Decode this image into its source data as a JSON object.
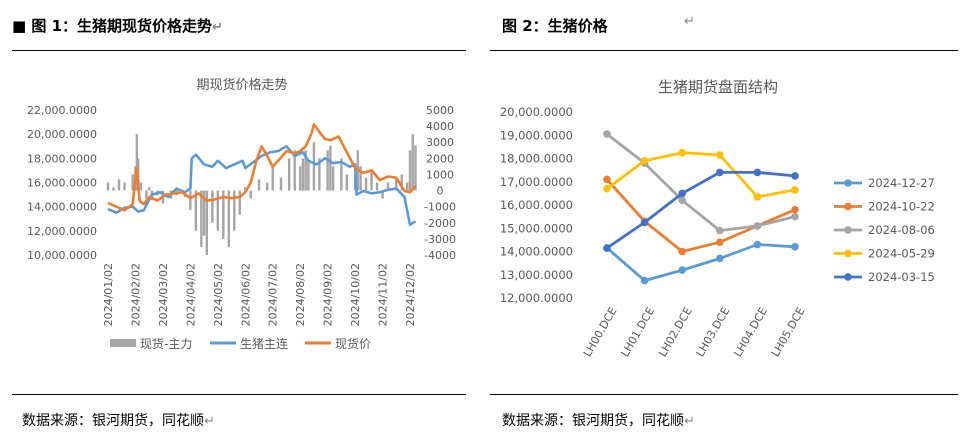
{
  "left": {
    "figure_title": "■ 图 1：生猪期现货价格走势",
    "source": "数据来源：银河期货，同花顺",
    "return_mark": "↵",
    "chart_data": {
      "type": "bar+line",
      "title": "期现货价格走势",
      "x_ticks": [
        "2024/01/02",
        "2024/02/02",
        "2024/03/02",
        "2024/04/02",
        "2024/05/02",
        "2024/06/02",
        "2024/07/02",
        "2024/08/02",
        "2024/09/02",
        "2024/10/02",
        "2024/11/02",
        "2024/12/02"
      ],
      "left_axis": {
        "ylim": [
          10000,
          22000
        ],
        "ticks": [
          "22,000.0000",
          "20,000.0000",
          "18,000.0000",
          "16,000.0000",
          "14,000.0000",
          "12,000.0000",
          "10,000.0000"
        ],
        "tick_values": [
          22000,
          20000,
          18000,
          16000,
          14000,
          12000,
          10000
        ]
      },
      "right_axis": {
        "ylim": [
          -4000,
          5000
        ],
        "ticks": [
          "5000",
          "4000",
          "3000",
          "2000",
          "1000",
          "0",
          "-1000",
          "-2000",
          "-3000",
          "-4000"
        ],
        "tick_values": [
          5000,
          4000,
          3000,
          2000,
          1000,
          0,
          -1000,
          -2000,
          -3000,
          -4000
        ]
      },
      "series": [
        {
          "name": "现货-主力",
          "kind": "bar",
          "axis": "right",
          "color": "#a5a5a5",
          "t": [
            0.0,
            0.2,
            0.4,
            0.6,
            0.9,
            1.0,
            1.05,
            1.1,
            1.2,
            1.4,
            1.5,
            1.6,
            1.8,
            2.0,
            2.3,
            2.5,
            2.8,
            3.0,
            3.2,
            3.4,
            3.5,
            3.6,
            3.8,
            4.0,
            4.2,
            4.4,
            4.6,
            4.8,
            5.0,
            5.2,
            5.5,
            5.8,
            6.0,
            6.3,
            6.6,
            6.8,
            7.0,
            7.1,
            7.2,
            7.3,
            7.5,
            7.7,
            8.0,
            8.1,
            8.2,
            8.5,
            8.7,
            9.0,
            9.1,
            9.2,
            9.4,
            9.6,
            9.8,
            10.0,
            10.2,
            10.5,
            10.7,
            10.9,
            11.0,
            11.1,
            11.2
          ],
          "values": [
            500,
            200,
            700,
            500,
            1000,
            1500,
            3500,
            2000,
            500,
            -500,
            200,
            -600,
            -300,
            -800,
            -500,
            -300,
            -400,
            -1200,
            -2500,
            -3500,
            -2800,
            -4000,
            -2000,
            -2500,
            -3000,
            -3500,
            -2500,
            -1500,
            200,
            -500,
            700,
            500,
            1500,
            800,
            2000,
            2500,
            1500,
            2000,
            2500,
            1800,
            3000,
            2000,
            2500,
            2800,
            1500,
            2000,
            1000,
            1000,
            2500,
            1500,
            800,
            1200,
            500,
            -500,
            500,
            800,
            1000,
            500,
            2500,
            3500,
            2800
          ]
        },
        {
          "name": "生猪主连",
          "kind": "line",
          "axis": "left",
          "color": "#5b9bd5",
          "t": [
            0.0,
            0.3,
            0.6,
            0.9,
            1.1,
            1.3,
            1.6,
            1.9,
            2.2,
            2.5,
            2.8,
            3.0,
            3.05,
            3.2,
            3.5,
            3.8,
            4.0,
            4.3,
            4.6,
            4.9,
            5.0,
            5.3,
            5.6,
            5.9,
            6.2,
            6.5,
            6.8,
            7.1,
            7.3,
            7.6,
            7.9,
            8.2,
            8.5,
            8.8,
            9.0,
            9.05,
            9.3,
            9.6,
            9.9,
            10.2,
            10.5,
            10.8,
            11.0,
            11.2
          ],
          "values": [
            13800,
            13500,
            13900,
            14000,
            13600,
            13700,
            15000,
            15200,
            14800,
            15500,
            15200,
            15500,
            18000,
            18300,
            17500,
            17300,
            17800,
            17200,
            17500,
            17800,
            17200,
            17700,
            18200,
            18500,
            18600,
            19000,
            18200,
            18500,
            17800,
            17500,
            18000,
            17600,
            17700,
            17300,
            17500,
            15000,
            15300,
            15100,
            15200,
            15400,
            15500,
            14800,
            12500,
            12800
          ]
        },
        {
          "name": "现货价",
          "kind": "line",
          "axis": "left",
          "color": "#ed7d31",
          "t": [
            0.0,
            0.3,
            0.6,
            0.9,
            1.0,
            1.05,
            1.15,
            1.3,
            1.5,
            1.8,
            2.1,
            2.4,
            2.7,
            3.0,
            3.3,
            3.6,
            3.9,
            4.2,
            4.5,
            4.8,
            5.0,
            5.2,
            5.4,
            5.6,
            5.8,
            6.0,
            6.2,
            6.5,
            6.8,
            7.0,
            7.2,
            7.4,
            7.5,
            7.7,
            7.9,
            8.1,
            8.4,
            8.7,
            9.0,
            9.3,
            9.6,
            9.9,
            10.2,
            10.5,
            10.8,
            11.0,
            11.2
          ],
          "values": [
            14300,
            14000,
            13700,
            14200,
            16500,
            17200,
            14500,
            14200,
            14800,
            14500,
            15000,
            15100,
            15200,
            14700,
            15100,
            14500,
            14600,
            14800,
            14700,
            14800,
            15200,
            16000,
            17800,
            19000,
            18200,
            17300,
            17800,
            18600,
            18400,
            18600,
            19000,
            20000,
            20800,
            20200,
            19600,
            19500,
            19800,
            18500,
            17200,
            16800,
            17000,
            16200,
            16500,
            16400,
            15300,
            15200,
            15700
          ]
        }
      ],
      "legend": [
        "现货-主力",
        "生猪主连",
        "现货价"
      ]
    }
  },
  "right": {
    "figure_title": "图 2：生猪价格",
    "source": "数据来源：银河期货，同花顺",
    "return_mark": "↵",
    "chart_data": {
      "type": "line",
      "title": "生猪期货盘面结构",
      "categories": [
        "LH00.DCE",
        "LH01.DCE",
        "LH02.DCE",
        "LH03.DCE",
        "LH04.DCE",
        "LH05.DCE"
      ],
      "ylim": [
        12000,
        20000
      ],
      "y_ticks": [
        "20,000.0000",
        "19,000.0000",
        "18,000.0000",
        "17,000.0000",
        "16,000.0000",
        "15,000.0000",
        "14,000.0000",
        "13,000.0000",
        "12,000.0000"
      ],
      "y_tick_values": [
        20000,
        19000,
        18000,
        17000,
        16000,
        15000,
        14000,
        13000,
        12000
      ],
      "series": [
        {
          "name": "2024-12-27",
          "color": "#5b9bd5",
          "values": [
            14150,
            12750,
            13200,
            13700,
            14300,
            14200
          ]
        },
        {
          "name": "2024-10-22",
          "color": "#ed7d31",
          "values": [
            17100,
            15300,
            14000,
            14400,
            15100,
            15800
          ]
        },
        {
          "name": "2024-08-06",
          "color": "#a5a5a5",
          "values": [
            19050,
            17800,
            16200,
            14900,
            15100,
            15500
          ]
        },
        {
          "name": "2024-05-29",
          "color": "#ffc000",
          "values": [
            16700,
            17900,
            18250,
            18150,
            16350,
            16650
          ]
        },
        {
          "name": "2024-03-15",
          "color": "#4472c4",
          "values": [
            14150,
            15250,
            16500,
            17400,
            17400,
            17250
          ]
        }
      ],
      "legend": [
        "2024-12-27",
        "2024-10-22",
        "2024-08-06",
        "2024-05-29",
        "2024-03-15"
      ]
    }
  }
}
